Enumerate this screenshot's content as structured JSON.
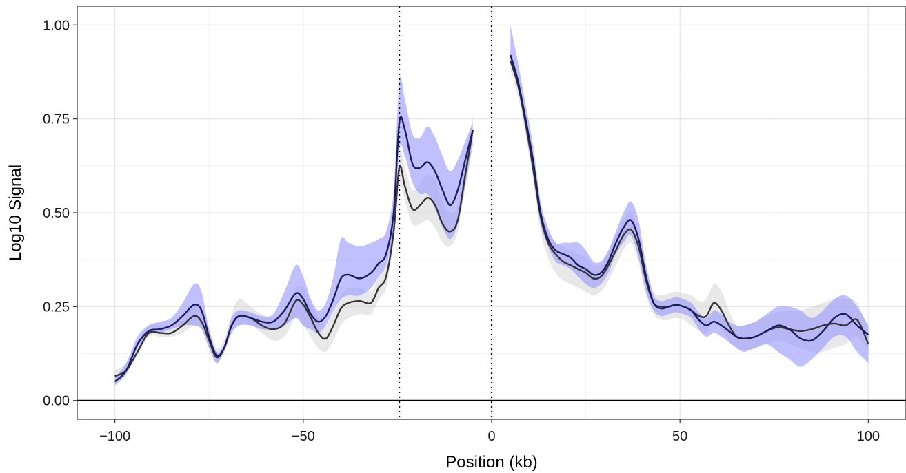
{
  "chart_data": {
    "type": "line",
    "xlabel": "Position (kb)",
    "ylabel": "Log10 Signal",
    "xlim": [
      -110,
      110
    ],
    "ylim": [
      -0.05,
      1.05
    ],
    "x_ticks": [
      -100,
      -50,
      0,
      50,
      100
    ],
    "x_tick_labels": [
      "−100",
      "−50",
      "0",
      "50",
      "100"
    ],
    "y_ticks": [
      0,
      0.25,
      0.5,
      0.75,
      1.0
    ],
    "y_tick_labels": [
      "0.00",
      "0.25",
      "0.50",
      "0.75",
      "1.00"
    ],
    "grid": true,
    "legend": "none",
    "reference_lines": {
      "horizontal": [
        {
          "y": 0,
          "style": "solid"
        }
      ],
      "vertical": [
        {
          "x": -24.5,
          "style": "dotted"
        },
        {
          "x": 0,
          "style": "dotted"
        }
      ]
    },
    "series": [
      {
        "color": "#1a1a5e",
        "ribbon_color": "#9999ff",
        "segments": [
          {
            "x": [
              -100,
              -97,
              -94,
              -91,
              -88,
              -85,
              -82,
              -79,
              -77,
              -75,
              -73,
              -71,
              -69,
              -67,
              -64,
              -61,
              -58,
              -55,
              -52,
              -50,
              -48,
              -46,
              -44,
              -42,
              -40,
              -38,
              -35,
              -32,
              -30,
              -28,
              -26,
              -24.5,
              -23,
              -21,
              -19,
              -17,
              -15,
              -13,
              -11,
              -9,
              -7,
              -5
            ],
            "y": [
              0.05,
              0.08,
              0.15,
              0.185,
              0.19,
              0.2,
              0.225,
              0.255,
              0.24,
              0.17,
              0.12,
              0.14,
              0.2,
              0.225,
              0.22,
              0.21,
              0.21,
              0.24,
              0.285,
              0.27,
              0.23,
              0.21,
              0.225,
              0.27,
              0.325,
              0.335,
              0.325,
              0.34,
              0.365,
              0.39,
              0.5,
              0.74,
              0.72,
              0.63,
              0.62,
              0.635,
              0.61,
              0.56,
              0.52,
              0.56,
              0.64,
              0.72
            ],
            "y_low": [
              0.04,
              0.07,
              0.14,
              0.175,
              0.18,
              0.19,
              0.2,
              0.2,
              0.19,
              0.14,
              0.1,
              0.13,
              0.18,
              0.2,
              0.2,
              0.19,
              0.19,
              0.2,
              0.22,
              0.2,
              0.19,
              0.18,
              0.2,
              0.24,
              0.27,
              0.28,
              0.28,
              0.3,
              0.33,
              0.36,
              0.46,
              0.67,
              0.65,
              0.58,
              0.55,
              0.55,
              0.51,
              0.46,
              0.43,
              0.47,
              0.57,
              0.68
            ],
            "y_high": [
              0.06,
              0.1,
              0.17,
              0.2,
              0.21,
              0.22,
              0.26,
              0.31,
              0.29,
              0.19,
              0.13,
              0.15,
              0.22,
              0.24,
              0.235,
              0.225,
              0.23,
              0.29,
              0.36,
              0.33,
              0.27,
              0.24,
              0.26,
              0.33,
              0.43,
              0.42,
              0.41,
              0.42,
              0.43,
              0.45,
              0.56,
              0.85,
              0.8,
              0.71,
              0.7,
              0.73,
              0.7,
              0.65,
              0.61,
              0.64,
              0.69,
              0.74
            ]
          },
          {
            "x": [
              5,
              7,
              9,
              11,
              13,
              15,
              17,
              19,
              21,
              23,
              25,
              27,
              29,
              31,
              33,
              35,
              37,
              39,
              41,
              43,
              45,
              47,
              49,
              51,
              53,
              55,
              57,
              59,
              61,
              63,
              65,
              67,
              70,
              73,
              76,
              79,
              82,
              85,
              88,
              91,
              94,
              97,
              100
            ],
            "y": [
              0.92,
              0.85,
              0.75,
              0.64,
              0.5,
              0.43,
              0.4,
              0.39,
              0.38,
              0.36,
              0.35,
              0.335,
              0.34,
              0.37,
              0.42,
              0.46,
              0.48,
              0.43,
              0.33,
              0.26,
              0.245,
              0.25,
              0.255,
              0.25,
              0.24,
              0.215,
              0.2,
              0.21,
              0.2,
              0.185,
              0.17,
              0.165,
              0.17,
              0.185,
              0.2,
              0.19,
              0.165,
              0.16,
              0.185,
              0.22,
              0.23,
              0.2,
              0.175
            ],
            "y_low": [
              0.9,
              0.83,
              0.72,
              0.6,
              0.47,
              0.41,
              0.37,
              0.36,
              0.35,
              0.33,
              0.31,
              0.3,
              0.31,
              0.34,
              0.39,
              0.42,
              0.44,
              0.38,
              0.29,
              0.24,
              0.225,
              0.23,
              0.235,
              0.23,
              0.22,
              0.19,
              0.17,
              0.18,
              0.17,
              0.155,
              0.14,
              0.13,
              0.14,
              0.15,
              0.13,
              0.11,
              0.09,
              0.11,
              0.14,
              0.17,
              0.17,
              0.13,
              0.1
            ],
            "y_high": [
              1.0,
              0.9,
              0.79,
              0.68,
              0.53,
              0.46,
              0.42,
              0.42,
              0.42,
              0.42,
              0.4,
              0.37,
              0.37,
              0.4,
              0.45,
              0.5,
              0.53,
              0.48,
              0.36,
              0.28,
              0.265,
              0.27,
              0.275,
              0.27,
              0.26,
              0.235,
              0.22,
              0.24,
              0.23,
              0.21,
              0.2,
              0.2,
              0.21,
              0.23,
              0.25,
              0.25,
              0.24,
              0.22,
              0.24,
              0.27,
              0.28,
              0.25,
              0.2
            ]
          }
        ]
      },
      {
        "color": "#333333",
        "ribbon_color": "#cccccc",
        "segments": [
          {
            "x": [
              -100,
              -97,
              -94,
              -91,
              -88,
              -85,
              -82,
              -79,
              -77,
              -75,
              -73,
              -71,
              -69,
              -67,
              -64,
              -61,
              -58,
              -55,
              -52,
              -50,
              -48,
              -46,
              -44,
              -42,
              -40,
              -38,
              -35,
              -32,
              -30,
              -28,
              -26,
              -24.5,
              -23,
              -21,
              -19,
              -17,
              -15,
              -13,
              -11,
              -9,
              -7,
              -5
            ],
            "y": [
              0.065,
              0.08,
              0.13,
              0.18,
              0.18,
              0.18,
              0.2,
              0.225,
              0.21,
              0.16,
              0.115,
              0.14,
              0.2,
              0.225,
              0.22,
              0.2,
              0.19,
              0.205,
              0.265,
              0.255,
              0.22,
              0.18,
              0.165,
              0.2,
              0.245,
              0.26,
              0.265,
              0.26,
              0.3,
              0.33,
              0.45,
              0.62,
              0.57,
              0.51,
              0.52,
              0.54,
              0.52,
              0.47,
              0.45,
              0.48,
              0.6,
              0.72
            ],
            "y_low": [
              0.05,
              0.07,
              0.12,
              0.17,
              0.17,
              0.17,
              0.18,
              0.2,
              0.19,
              0.14,
              0.1,
              0.13,
              0.18,
              0.2,
              0.2,
              0.18,
              0.16,
              0.17,
              0.22,
              0.2,
              0.17,
              0.14,
              0.13,
              0.16,
              0.2,
              0.22,
              0.23,
              0.23,
              0.27,
              0.3,
              0.42,
              0.57,
              0.53,
              0.47,
              0.47,
              0.48,
              0.46,
              0.42,
              0.41,
              0.45,
              0.57,
              0.7
            ],
            "y_high": [
              0.08,
              0.1,
              0.15,
              0.2,
              0.2,
              0.2,
              0.22,
              0.25,
              0.24,
              0.19,
              0.14,
              0.16,
              0.23,
              0.27,
              0.25,
              0.23,
              0.22,
              0.24,
              0.3,
              0.3,
              0.26,
              0.22,
              0.2,
              0.24,
              0.28,
              0.3,
              0.3,
              0.29,
              0.33,
              0.36,
              0.48,
              0.66,
              0.62,
              0.56,
              0.58,
              0.6,
              0.59,
              0.53,
              0.5,
              0.52,
              0.64,
              0.76
            ]
          },
          {
            "x": [
              5,
              7,
              9,
              11,
              13,
              15,
              17,
              19,
              21,
              23,
              25,
              27,
              29,
              31,
              33,
              35,
              37,
              39,
              41,
              43,
              45,
              47,
              49,
              51,
              53,
              55,
              57,
              59,
              61,
              63,
              65,
              67,
              70,
              73,
              76,
              79,
              82,
              85,
              88,
              91,
              94,
              97,
              100
            ],
            "y": [
              0.905,
              0.84,
              0.74,
              0.62,
              0.49,
              0.42,
              0.39,
              0.37,
              0.36,
              0.35,
              0.34,
              0.325,
              0.33,
              0.36,
              0.4,
              0.44,
              0.455,
              0.41,
              0.32,
              0.26,
              0.25,
              0.25,
              0.255,
              0.25,
              0.24,
              0.225,
              0.225,
              0.26,
              0.24,
              0.2,
              0.17,
              0.165,
              0.17,
              0.185,
              0.195,
              0.19,
              0.185,
              0.19,
              0.2,
              0.205,
              0.2,
              0.215,
              0.15
            ],
            "y_low": [
              0.88,
              0.81,
              0.71,
              0.59,
              0.45,
              0.38,
              0.34,
              0.32,
              0.31,
              0.3,
              0.29,
              0.28,
              0.29,
              0.32,
              0.36,
              0.4,
              0.42,
              0.37,
              0.28,
              0.23,
              0.215,
              0.215,
              0.22,
              0.215,
              0.2,
              0.185,
              0.18,
              0.21,
              0.19,
              0.16,
              0.14,
              0.135,
              0.14,
              0.15,
              0.16,
              0.15,
              0.14,
              0.13,
              0.13,
              0.14,
              0.15,
              0.17,
              0.13
            ],
            "y_high": [
              0.93,
              0.87,
              0.77,
              0.65,
              0.52,
              0.45,
              0.42,
              0.41,
              0.4,
              0.39,
              0.38,
              0.36,
              0.36,
              0.4,
              0.44,
              0.48,
              0.5,
              0.45,
              0.36,
              0.29,
              0.28,
              0.285,
              0.29,
              0.285,
              0.28,
              0.265,
              0.27,
              0.31,
              0.29,
              0.24,
              0.2,
              0.2,
              0.21,
              0.225,
              0.235,
              0.24,
              0.24,
              0.25,
              0.26,
              0.27,
              0.27,
              0.26,
              0.19
            ]
          }
        ]
      }
    ]
  }
}
